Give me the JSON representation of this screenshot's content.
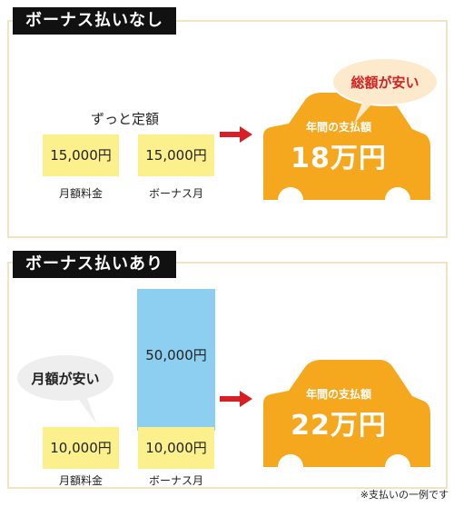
{
  "section1": {
    "title": "ボーナス払いなし",
    "headline": "ずっと定額",
    "monthly_amount": "15,000円",
    "bonus_amount": "15,000円",
    "monthly_label": "月額料金",
    "bonus_label": "ボーナス月",
    "car_caption": "年間の支払額",
    "car_total": "18万円",
    "bubble": "総額が安い"
  },
  "section2": {
    "title": "ボーナス払いあり",
    "bubble": "月額が安い",
    "monthly_amount": "10,000円",
    "bonus_extra": "50,000円",
    "bonus_amount": "10,000円",
    "monthly_label": "月額料金",
    "bonus_label": "ボーナス月",
    "car_caption": "年間の支払額",
    "car_total": "22万円"
  },
  "footnote": "※支払いの一例です",
  "colors": {
    "car": "#f5a81e",
    "yellow_box": "#fbf08c",
    "blue_box": "#8dcff0",
    "arrow": "#d81f26",
    "bubble_1": "#fde9cc",
    "bubble_2": "#eeeeee",
    "bubble_1_text": "#d32222"
  }
}
